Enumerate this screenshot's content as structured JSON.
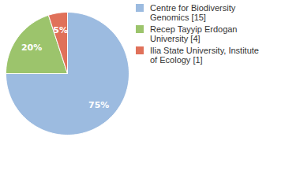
{
  "chart_data": {
    "type": "pie",
    "categories": [
      "Centre for Biodiversity Genomics [15]",
      "Recep Tayyip Erdogan University [4]",
      "Ilia State University, Institute of Ecology [1]"
    ],
    "values": [
      75,
      20,
      5
    ],
    "value_labels": [
      "75%",
      "20%",
      "5%"
    ],
    "colors": [
      "#9cbbe0",
      "#9cc46c",
      "#e0715a"
    ],
    "data_labels": true,
    "legend": "top-right"
  }
}
